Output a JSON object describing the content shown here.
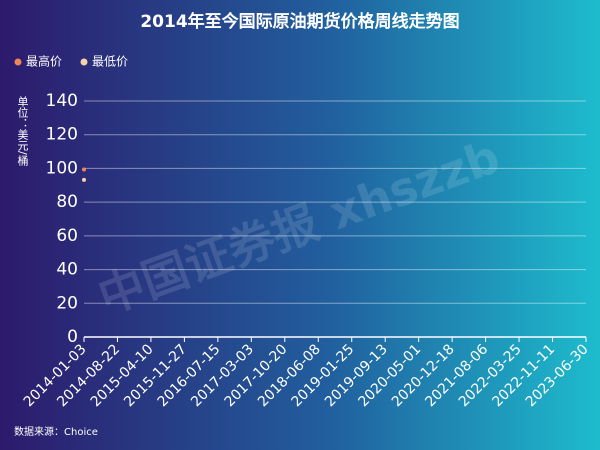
{
  "chart_data": {
    "type": "line",
    "title": "2014年至今国际原油期货价格周线走势图",
    "y_label": "单位：美元/桶",
    "source": "数据来源：Choice",
    "watermark": "中国证券报 xhszzb",
    "categories": [
      "2014-01-03",
      "2014-08-22",
      "2015-04-10",
      "2015-11-27",
      "2016-07-15",
      "2017-03-03",
      "2017-10-20",
      "2018-06-08",
      "2019-01-25",
      "2019-09-13",
      "2020-05-01",
      "2020-12-18",
      "2021-08-06",
      "2022-03-25",
      "2022-11-11",
      "2023-06-30"
    ],
    "series": [
      {
        "name": "最高价",
        "color": "#f0845a",
        "values": [
          99.4,
          null,
          null,
          null,
          null,
          null,
          null,
          null,
          null,
          null,
          null,
          null,
          null,
          null,
          null,
          null
        ]
      },
      {
        "name": "最低价",
        "color": "#f5d3a8",
        "values": [
          93.2,
          null,
          null,
          null,
          null,
          null,
          null,
          null,
          null,
          null,
          null,
          null,
          null,
          null,
          null,
          null
        ]
      }
    ],
    "ylim": [
      0,
      140
    ],
    "yticks": [
      0,
      20,
      40,
      60,
      80,
      100,
      120,
      140
    ],
    "grid": true,
    "legend": "top-left"
  }
}
